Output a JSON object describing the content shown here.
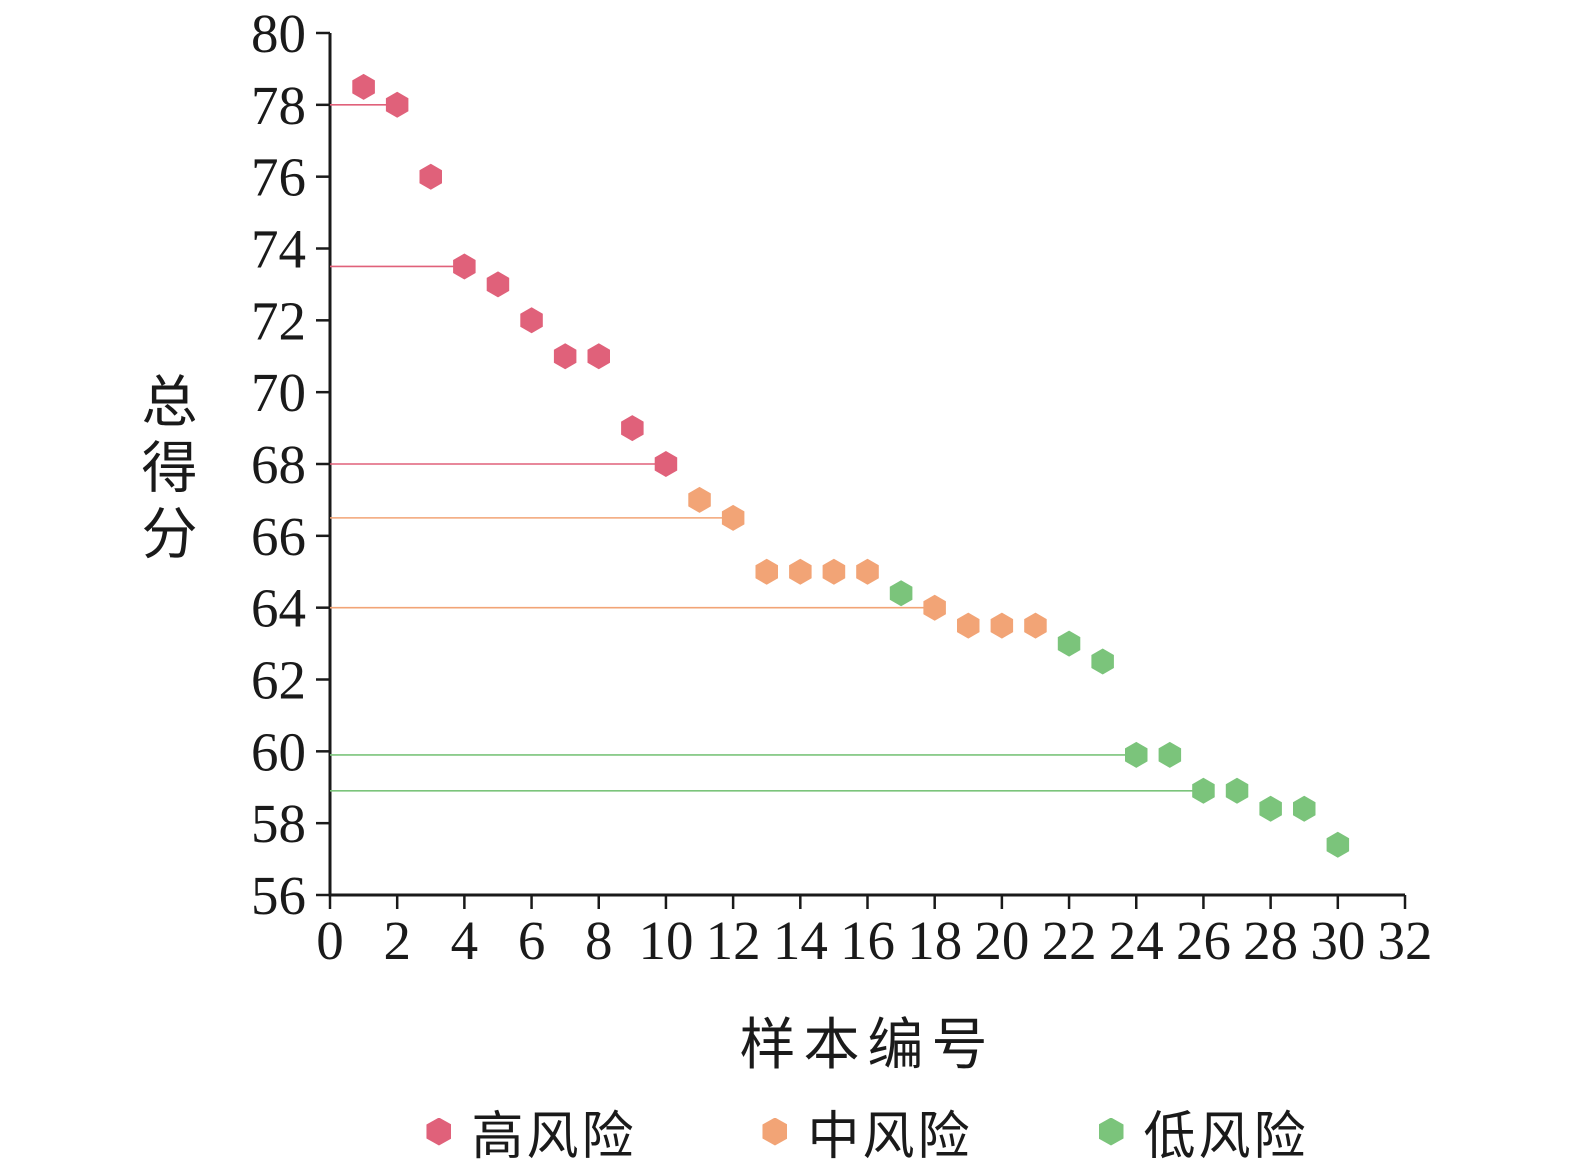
{
  "chart_data": {
    "type": "scatter",
    "title": "",
    "xlabel": "样本编号",
    "ylabel": "总得分",
    "xlim": [
      0,
      32
    ],
    "ylim": [
      56,
      80
    ],
    "x_ticks": [
      0,
      2,
      4,
      6,
      8,
      10,
      12,
      14,
      16,
      18,
      20,
      22,
      24,
      26,
      28,
      30,
      32
    ],
    "y_ticks": [
      56,
      58,
      60,
      62,
      64,
      66,
      68,
      70,
      72,
      74,
      76,
      78,
      80
    ],
    "marker_shape": "hexagon",
    "grid": false,
    "axis_color": "#1a1a1a",
    "legend_position": "bottom",
    "series": [
      {
        "name": "高风险",
        "color": "#e0617a",
        "points": [
          [
            1,
            78.5
          ],
          [
            2,
            78.0
          ],
          [
            3,
            76.0
          ],
          [
            4,
            73.5
          ],
          [
            5,
            73.0
          ],
          [
            6,
            72.0
          ],
          [
            7,
            71.0
          ],
          [
            8,
            71.0
          ],
          [
            9,
            69.0
          ],
          [
            10,
            68.0
          ]
        ]
      },
      {
        "name": "中风险",
        "color": "#f2a476",
        "points": [
          [
            11,
            67.0
          ],
          [
            12,
            66.5
          ],
          [
            13,
            65.0
          ],
          [
            14,
            65.0
          ],
          [
            15,
            65.0
          ],
          [
            16,
            65.0
          ],
          [
            18,
            64.0
          ],
          [
            19,
            63.5
          ],
          [
            20,
            63.5
          ],
          [
            21,
            63.5
          ]
        ]
      },
      {
        "name": "低风险",
        "color": "#7bc47b",
        "points": [
          [
            17,
            64.4
          ],
          [
            22,
            63.0
          ],
          [
            23,
            62.5
          ],
          [
            24,
            59.9
          ],
          [
            25,
            59.9
          ],
          [
            26,
            58.9
          ],
          [
            27,
            58.9
          ],
          [
            28,
            58.4
          ],
          [
            29,
            58.4
          ],
          [
            30,
            57.4
          ]
        ]
      }
    ],
    "reference_lines": [
      {
        "y": 78.0,
        "x_start": 0,
        "x_end": 2,
        "series_index": 0
      },
      {
        "y": 73.5,
        "x_start": 0,
        "x_end": 4,
        "series_index": 0
      },
      {
        "y": 68.0,
        "x_start": 0,
        "x_end": 10,
        "series_index": 0
      },
      {
        "y": 66.5,
        "x_start": 0,
        "x_end": 12,
        "series_index": 1
      },
      {
        "y": 64.0,
        "x_start": 0,
        "x_end": 18,
        "series_index": 1
      },
      {
        "y": 59.9,
        "x_start": 0,
        "x_end": 24,
        "series_index": 2
      },
      {
        "y": 58.9,
        "x_start": 0,
        "x_end": 26,
        "series_index": 2
      }
    ]
  }
}
